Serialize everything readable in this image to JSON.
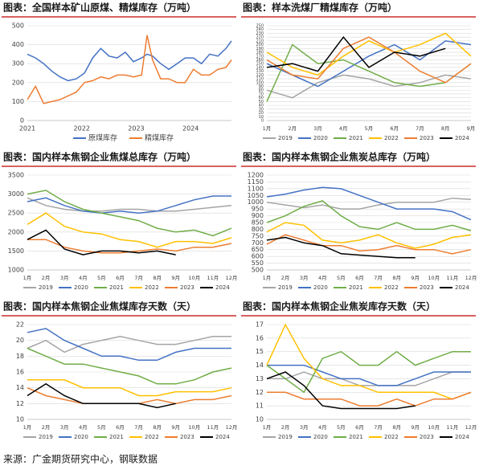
{
  "chart_data": [
    {
      "type": "line",
      "title": "图表：全国样本矿山原煤、精煤库存（万吨）",
      "x": [
        2021,
        2021.15,
        2021.3,
        2021.45,
        2021.6,
        2021.75,
        2021.9,
        2022.05,
        2022.2,
        2022.35,
        2022.5,
        2022.65,
        2022.8,
        2022.95,
        2023.1,
        2023.2,
        2023.3,
        2023.45,
        2023.6,
        2023.75,
        2023.9,
        2024.05,
        2024.2,
        2024.35,
        2024.5,
        2024.65,
        2024.75
      ],
      "xlim": [
        2021,
        2024.75
      ],
      "xticks": [
        2021,
        2022,
        2023,
        2024
      ],
      "ylim": [
        0,
        500
      ],
      "yticks": [
        0,
        100,
        200,
        300,
        400,
        500
      ],
      "grid": true,
      "series": [
        {
          "name": "原煤库存",
          "color": "#4472c4",
          "values": [
            350,
            330,
            300,
            260,
            230,
            210,
            220,
            250,
            330,
            380,
            340,
            330,
            360,
            310,
            330,
            350,
            340,
            300,
            270,
            300,
            330,
            330,
            300,
            350,
            340,
            380,
            420
          ]
        },
        {
          "name": "精煤库存",
          "color": "#ed7d31",
          "values": [
            110,
            180,
            90,
            100,
            110,
            130,
            150,
            200,
            210,
            230,
            220,
            240,
            240,
            230,
            240,
            450,
            320,
            220,
            220,
            200,
            200,
            270,
            240,
            240,
            270,
            280,
            320
          ]
        }
      ]
    },
    {
      "type": "line",
      "title": "图表：样本洗煤厂精煤库存（万吨）",
      "categories": [
        "1月",
        "2月",
        "3月",
        "4月",
        "5月",
        "6月",
        "7月",
        "8月",
        "9月"
      ],
      "ylim": [
        0,
        250
      ],
      "yticks": [
        0,
        10,
        20,
        30,
        40,
        50,
        60,
        70,
        80,
        90,
        100,
        110,
        120,
        130,
        140,
        150,
        160,
        170,
        180,
        190,
        200,
        210,
        220,
        230,
        240,
        250
      ],
      "grid": true,
      "series": [
        {
          "name": "2019",
          "color": "#a5a5a5",
          "values": [
            80,
            60,
            100,
            120,
            110,
            90,
            100,
            120,
            110
          ]
        },
        {
          "name": "2020",
          "color": "#4472c4",
          "values": [
            150,
            120,
            90,
            130,
            170,
            200,
            160,
            210,
            200
          ]
        },
        {
          "name": "2021",
          "color": "#70ad47",
          "values": [
            50,
            200,
            150,
            160,
            130,
            100,
            90,
            100,
            150
          ]
        },
        {
          "name": "2022",
          "color": "#ffc000",
          "values": [
            180,
            140,
            120,
            170,
            210,
            180,
            200,
            230,
            170
          ]
        },
        {
          "name": "2023",
          "color": "#ed7d31",
          "values": [
            160,
            120,
            110,
            190,
            220,
            180,
            130,
            100,
            150
          ]
        },
        {
          "name": "2024",
          "color": "#000000",
          "values": [
            140,
            150,
            130,
            220,
            140,
            180,
            170,
            190,
            null
          ]
        }
      ]
    },
    {
      "type": "line",
      "title": "图表：国内样本焦钢企业焦煤总库存（万吨）",
      "categories": [
        "1月",
        "2月",
        "3月",
        "4月",
        "5月",
        "6月",
        "7月",
        "8月",
        "9月",
        "10月",
        "11月",
        "12月"
      ],
      "ylim": [
        1000,
        3500
      ],
      "yticks": [
        1000,
        1500,
        2000,
        2500,
        3000,
        3500
      ],
      "grid": true,
      "series": [
        {
          "name": "2019",
          "color": "#a5a5a5",
          "values": [
            2900,
            2700,
            2600,
            2550,
            2550,
            2600,
            2600,
            2550,
            2550,
            2600,
            2650,
            2700
          ]
        },
        {
          "name": "2020",
          "color": "#4472c4",
          "values": [
            2800,
            2900,
            2700,
            2550,
            2500,
            2550,
            2500,
            2550,
            2700,
            2850,
            2950,
            2950
          ]
        },
        {
          "name": "2021",
          "color": "#70ad47",
          "values": [
            3000,
            3100,
            2800,
            2600,
            2500,
            2400,
            2300,
            2100,
            2000,
            2050,
            1900,
            2100
          ]
        },
        {
          "name": "2022",
          "color": "#ffc000",
          "values": [
            2200,
            2500,
            2150,
            2000,
            1950,
            1800,
            1750,
            1600,
            1750,
            1750,
            1700,
            1850
          ]
        },
        {
          "name": "2023",
          "color": "#ed7d31",
          "values": [
            1800,
            1800,
            1600,
            1500,
            1450,
            1450,
            1500,
            1550,
            1500,
            1600,
            1600,
            1700
          ]
        },
        {
          "name": "2024",
          "color": "#000000",
          "values": [
            1800,
            2050,
            1550,
            1400,
            1500,
            1500,
            1450,
            1500,
            1400,
            null,
            null,
            null
          ]
        }
      ]
    },
    {
      "type": "line",
      "title": "图表：国内样本焦钢企业焦炭总库存（万吨）",
      "categories": [
        "1月",
        "2月",
        "3月",
        "4月",
        "5月",
        "6月",
        "7月",
        "8月",
        "9月",
        "10月",
        "11月",
        "12月"
      ],
      "ylim": [
        500,
        1200
      ],
      "yticks": [
        500,
        550,
        600,
        650,
        700,
        750,
        800,
        850,
        900,
        950,
        1000,
        1050,
        1100,
        1150,
        1200
      ],
      "grid": true,
      "series": [
        {
          "name": "2019",
          "color": "#a5a5a5",
          "values": [
            1000,
            980,
            960,
            980,
            950,
            950,
            980,
            1000,
            1000,
            1000,
            1030,
            1020
          ]
        },
        {
          "name": "2020",
          "color": "#4472c4",
          "values": [
            1040,
            1060,
            1090,
            1110,
            1100,
            1050,
            1000,
            950,
            950,
            950,
            930,
            870
          ]
        },
        {
          "name": "2021",
          "color": "#70ad47",
          "values": [
            850,
            900,
            970,
            1010,
            900,
            820,
            800,
            850,
            800,
            800,
            830,
            790
          ]
        },
        {
          "name": "2022",
          "color": "#ffc000",
          "values": [
            780,
            850,
            830,
            720,
            700,
            720,
            760,
            700,
            660,
            690,
            740,
            760
          ]
        },
        {
          "name": "2023",
          "color": "#ed7d31",
          "values": [
            690,
            760,
            720,
            680,
            680,
            640,
            650,
            680,
            650,
            650,
            620,
            650
          ]
        },
        {
          "name": "2024",
          "color": "#000000",
          "values": [
            720,
            740,
            700,
            680,
            620,
            610,
            600,
            590,
            590,
            null,
            null,
            null
          ]
        }
      ]
    },
    {
      "type": "line",
      "title": "图表：国内样本焦钢企业焦煤库存天数（天）",
      "categories": [
        "1月",
        "2月",
        "3月",
        "4月",
        "5月",
        "6月",
        "7月",
        "8月",
        "9月",
        "10月",
        "11月",
        "12月"
      ],
      "ylim": [
        10,
        22
      ],
      "yticks": [
        10,
        12,
        14,
        16,
        18,
        20,
        22
      ],
      "grid": true,
      "series": [
        {
          "name": "2019",
          "color": "#a5a5a5",
          "values": [
            19,
            20,
            18.5,
            19.5,
            20,
            20.5,
            20,
            19.5,
            19.5,
            20,
            20.5,
            20.5
          ]
        },
        {
          "name": "2020",
          "color": "#4472c4",
          "values": [
            21,
            21.5,
            20,
            19,
            18,
            18,
            17.5,
            17.5,
            18.5,
            19,
            19,
            19
          ]
        },
        {
          "name": "2021",
          "color": "#70ad47",
          "values": [
            19,
            18,
            17,
            17,
            16.5,
            16,
            15.5,
            14.5,
            14.5,
            15,
            16,
            16.5
          ]
        },
        {
          "name": "2022",
          "color": "#ffc000",
          "values": [
            15,
            15,
            15,
            14,
            14,
            14,
            13,
            13,
            13.5,
            13.5,
            13.5,
            14
          ]
        },
        {
          "name": "2023",
          "color": "#ed7d31",
          "values": [
            14,
            13,
            12.5,
            12,
            12,
            12,
            12,
            12.5,
            12,
            12.5,
            12.5,
            13
          ]
        },
        {
          "name": "2024",
          "color": "#000000",
          "values": [
            13,
            14.5,
            13,
            12,
            12,
            12,
            12,
            11.5,
            12,
            null,
            null,
            null
          ]
        }
      ]
    },
    {
      "type": "line",
      "title": "图表：国内样本焦钢企业焦炭库存天数（天）",
      "categories": [
        "1月",
        "2月",
        "3月",
        "4月",
        "5月",
        "6月",
        "7月",
        "8月",
        "9月",
        "10月",
        "11月",
        "12月"
      ],
      "ylim": [
        10,
        17
      ],
      "yticks": [
        10,
        11,
        12,
        13,
        14,
        15,
        16,
        17
      ],
      "grid": true,
      "series": [
        {
          "name": "2019",
          "color": "#a5a5a5",
          "values": [
            13,
            13,
            13.5,
            13,
            13,
            12.5,
            12.5,
            12.5,
            12.5,
            13,
            13.5,
            13.5
          ]
        },
        {
          "name": "2020",
          "color": "#4472c4",
          "values": [
            14,
            14,
            14,
            13.5,
            13,
            13,
            12.5,
            12.5,
            13,
            13.5,
            13.5,
            13.5
          ]
        },
        {
          "name": "2021",
          "color": "#70ad47",
          "values": [
            14,
            13,
            12,
            14.5,
            15,
            14,
            14,
            15,
            14,
            14.5,
            15,
            15
          ]
        },
        {
          "name": "2022",
          "color": "#ffc000",
          "values": [
            14,
            17,
            14.5,
            13,
            12.5,
            12.5,
            12,
            12,
            12,
            12,
            11.5,
            12
          ]
        },
        {
          "name": "2023",
          "color": "#ed7d31",
          "values": [
            12,
            12,
            11.5,
            11.5,
            11.5,
            11,
            11,
            11.5,
            11,
            11.5,
            11.5,
            12
          ]
        },
        {
          "name": "2024",
          "color": "#000000",
          "values": [
            13,
            13.5,
            12.5,
            11,
            10.8,
            10.8,
            10.8,
            10.8,
            11,
            null,
            null,
            null
          ]
        }
      ]
    }
  ],
  "source": "来源：广金期货研究中心，钢联数据"
}
